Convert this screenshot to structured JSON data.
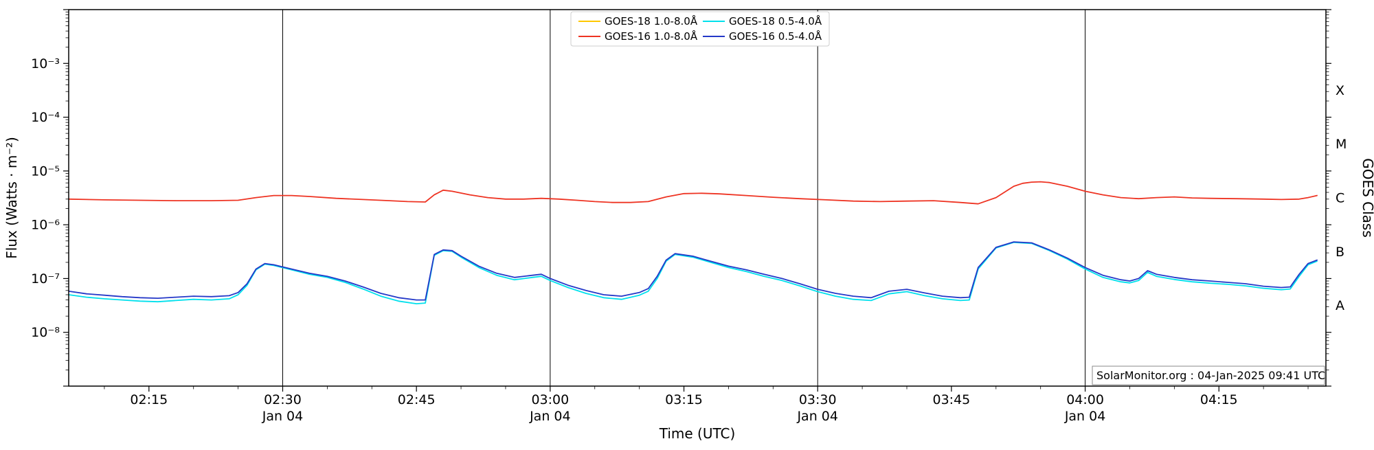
{
  "chart_data": {
    "type": "line",
    "title": "",
    "xlabel": "Time (UTC)",
    "ylabel": "Flux (Watts · m⁻²)",
    "ylabel_right": "GOES Class",
    "annotation": "SolarMonitor.org : 04-Jan-2025 09:41 UTC",
    "x_axis": {
      "unit": "minutes after 00:00 UTC, 04-Jan-2025",
      "range_minutes": [
        126,
        267
      ],
      "minor_tick_step_minutes": 5,
      "ticks": [
        {
          "t": 135,
          "label": "02:15"
        },
        {
          "t": 150,
          "label": "02:30"
        },
        {
          "t": 165,
          "label": "02:45"
        },
        {
          "t": 180,
          "label": "03:00"
        },
        {
          "t": 195,
          "label": "03:15"
        },
        {
          "t": 210,
          "label": "03:30"
        },
        {
          "t": 225,
          "label": "03:45"
        },
        {
          "t": 240,
          "label": "04:00"
        },
        {
          "t": 255,
          "label": "04:15"
        }
      ],
      "date_markers": [
        {
          "t": 150,
          "label": "Jan 04"
        },
        {
          "t": 180,
          "label": "Jan 04"
        },
        {
          "t": 210,
          "label": "Jan 04"
        },
        {
          "t": 240,
          "label": "Jan 04"
        }
      ]
    },
    "y_axis": {
      "scale": "log",
      "range": [
        1e-09,
        0.01
      ],
      "ticks": [
        {
          "v": 0.001,
          "label": "10⁻³"
        },
        {
          "v": 0.0001,
          "label": "10⁻⁴"
        },
        {
          "v": 1e-05,
          "label": "10⁻⁵"
        },
        {
          "v": 1e-06,
          "label": "10⁻⁶"
        },
        {
          "v": 1e-07,
          "label": "10⁻⁷"
        },
        {
          "v": 1e-08,
          "label": "10⁻⁸"
        }
      ]
    },
    "right_axis": {
      "classes": [
        {
          "label": "X",
          "v": 0.000316
        },
        {
          "label": "M",
          "v": 3.16e-05
        },
        {
          "label": "C",
          "v": 3.16e-06
        },
        {
          "label": "B",
          "v": 3.16e-07
        },
        {
          "label": "A",
          "v": 3.16e-08
        }
      ]
    },
    "legend_position": "top-center",
    "grid": "vertical-date-lines-only",
    "series": [
      {
        "name": "GOES-18 1.0-8.0Å",
        "color": "#ffc800",
        "note": "legend entry only; trace hidden beneath GOES-16 1.0-8.0Å",
        "points": []
      },
      {
        "name": "GOES-16 1.0-8.0Å",
        "color": "#ee3322",
        "points": [
          [
            126,
            3e-06
          ],
          [
            130,
            2.9e-06
          ],
          [
            134,
            2.85e-06
          ],
          [
            138,
            2.8e-06
          ],
          [
            142,
            2.8e-06
          ],
          [
            145,
            2.85e-06
          ],
          [
            147,
            3.2e-06
          ],
          [
            149,
            3.5e-06
          ],
          [
            151,
            3.5e-06
          ],
          [
            153,
            3.35e-06
          ],
          [
            156,
            3.1e-06
          ],
          [
            159,
            2.95e-06
          ],
          [
            162,
            2.8e-06
          ],
          [
            164,
            2.7e-06
          ],
          [
            166,
            2.65e-06
          ],
          [
            167,
            3.6e-06
          ],
          [
            168,
            4.4e-06
          ],
          [
            169,
            4.2e-06
          ],
          [
            171,
            3.6e-06
          ],
          [
            173,
            3.2e-06
          ],
          [
            175,
            3e-06
          ],
          [
            177,
            3e-06
          ],
          [
            179,
            3.1e-06
          ],
          [
            181,
            3e-06
          ],
          [
            183,
            2.85e-06
          ],
          [
            185,
            2.7e-06
          ],
          [
            187,
            2.6e-06
          ],
          [
            189,
            2.6e-06
          ],
          [
            191,
            2.7e-06
          ],
          [
            193,
            3.3e-06
          ],
          [
            195,
            3.8e-06
          ],
          [
            197,
            3.85e-06
          ],
          [
            199,
            3.75e-06
          ],
          [
            202,
            3.5e-06
          ],
          [
            205,
            3.25e-06
          ],
          [
            208,
            3.05e-06
          ],
          [
            211,
            2.9e-06
          ],
          [
            214,
            2.75e-06
          ],
          [
            217,
            2.7e-06
          ],
          [
            220,
            2.75e-06
          ],
          [
            223,
            2.8e-06
          ],
          [
            226,
            2.6e-06
          ],
          [
            228,
            2.45e-06
          ],
          [
            230,
            3.2e-06
          ],
          [
            232,
            5.2e-06
          ],
          [
            233,
            5.9e-06
          ],
          [
            234,
            6.2e-06
          ],
          [
            235,
            6.3e-06
          ],
          [
            236,
            6.1e-06
          ],
          [
            238,
            5.2e-06
          ],
          [
            240,
            4.2e-06
          ],
          [
            242,
            3.6e-06
          ],
          [
            244,
            3.2e-06
          ],
          [
            246,
            3.05e-06
          ],
          [
            248,
            3.2e-06
          ],
          [
            250,
            3.3e-06
          ],
          [
            252,
            3.15e-06
          ],
          [
            254,
            3.1e-06
          ],
          [
            257,
            3.05e-06
          ],
          [
            260,
            3e-06
          ],
          [
            262,
            2.95e-06
          ],
          [
            264,
            3e-06
          ],
          [
            265,
            3.2e-06
          ],
          [
            266,
            3.5e-06
          ]
        ]
      },
      {
        "name": "GOES-18 0.5-4.0Å",
        "color": "#00e0ec",
        "points": [
          [
            126,
            5e-08
          ],
          [
            128,
            4.5e-08
          ],
          [
            130,
            4.2e-08
          ],
          [
            132,
            4e-08
          ],
          [
            134,
            3.8e-08
          ],
          [
            136,
            3.7e-08
          ],
          [
            138,
            3.9e-08
          ],
          [
            140,
            4.1e-08
          ],
          [
            142,
            4e-08
          ],
          [
            144,
            4.2e-08
          ],
          [
            145,
            5e-08
          ],
          [
            146,
            7.5e-08
          ],
          [
            147,
            1.45e-07
          ],
          [
            148,
            1.85e-07
          ],
          [
            149,
            1.75e-07
          ],
          [
            151,
            1.45e-07
          ],
          [
            153,
            1.2e-07
          ],
          [
            155,
            1.05e-07
          ],
          [
            157,
            8.5e-08
          ],
          [
            159,
            6.4e-08
          ],
          [
            161,
            4.7e-08
          ],
          [
            163,
            3.8e-08
          ],
          [
            165,
            3.4e-08
          ],
          [
            166,
            3.5e-08
          ],
          [
            167,
            2.7e-07
          ],
          [
            168,
            3.3e-07
          ],
          [
            169,
            3.2e-07
          ],
          [
            170,
            2.5e-07
          ],
          [
            172,
            1.6e-07
          ],
          [
            174,
            1.15e-07
          ],
          [
            176,
            9.5e-08
          ],
          [
            178,
            1.05e-07
          ],
          [
            179,
            1.1e-07
          ],
          [
            180,
            9.2e-08
          ],
          [
            182,
            6.8e-08
          ],
          [
            184,
            5.3e-08
          ],
          [
            186,
            4.4e-08
          ],
          [
            188,
            4.1e-08
          ],
          [
            190,
            4.9e-08
          ],
          [
            191,
            5.8e-08
          ],
          [
            192,
            1e-07
          ],
          [
            193,
            2.1e-07
          ],
          [
            194,
            2.8e-07
          ],
          [
            196,
            2.5e-07
          ],
          [
            198,
            2e-07
          ],
          [
            200,
            1.6e-07
          ],
          [
            202,
            1.35e-07
          ],
          [
            204,
            1.1e-07
          ],
          [
            206,
            9.2e-08
          ],
          [
            208,
            7.3e-08
          ],
          [
            210,
            5.7e-08
          ],
          [
            212,
            4.7e-08
          ],
          [
            214,
            4.1e-08
          ],
          [
            216,
            3.9e-08
          ],
          [
            218,
            5.2e-08
          ],
          [
            220,
            5.7e-08
          ],
          [
            222,
            4.8e-08
          ],
          [
            224,
            4.2e-08
          ],
          [
            226,
            3.9e-08
          ],
          [
            227,
            4e-08
          ],
          [
            228,
            1.5e-07
          ],
          [
            230,
            3.7e-07
          ],
          [
            232,
            4.7e-07
          ],
          [
            234,
            4.5e-07
          ],
          [
            236,
            3.3e-07
          ],
          [
            238,
            2.3e-07
          ],
          [
            240,
            1.5e-07
          ],
          [
            242,
            1.05e-07
          ],
          [
            244,
            8.7e-08
          ],
          [
            245,
            8.3e-08
          ],
          [
            246,
            9.2e-08
          ],
          [
            247,
            1.3e-07
          ],
          [
            248,
            1.1e-07
          ],
          [
            250,
            9.6e-08
          ],
          [
            252,
            8.7e-08
          ],
          [
            254,
            8.2e-08
          ],
          [
            256,
            7.8e-08
          ],
          [
            258,
            7.3e-08
          ],
          [
            260,
            6.6e-08
          ],
          [
            262,
            6.2e-08
          ],
          [
            263,
            6.4e-08
          ],
          [
            264,
            1.1e-07
          ],
          [
            265,
            1.8e-07
          ],
          [
            266,
            2.1e-07
          ]
        ]
      },
      {
        "name": "GOES-16 0.5-4.0Å",
        "color": "#2438c8",
        "points": [
          [
            126,
            5.8e-08
          ],
          [
            128,
            5.2e-08
          ],
          [
            130,
            4.9e-08
          ],
          [
            132,
            4.6e-08
          ],
          [
            134,
            4.4e-08
          ],
          [
            136,
            4.3e-08
          ],
          [
            138,
            4.5e-08
          ],
          [
            140,
            4.7e-08
          ],
          [
            142,
            4.6e-08
          ],
          [
            144,
            4.8e-08
          ],
          [
            145,
            5.5e-08
          ],
          [
            146,
            8e-08
          ],
          [
            147,
            1.5e-07
          ],
          [
            148,
            1.9e-07
          ],
          [
            149,
            1.8e-07
          ],
          [
            151,
            1.5e-07
          ],
          [
            153,
            1.25e-07
          ],
          [
            155,
            1.1e-07
          ],
          [
            157,
            9e-08
          ],
          [
            159,
            7e-08
          ],
          [
            161,
            5.3e-08
          ],
          [
            163,
            4.4e-08
          ],
          [
            165,
            4e-08
          ],
          [
            166,
            4e-08
          ],
          [
            167,
            2.8e-07
          ],
          [
            168,
            3.4e-07
          ],
          [
            169,
            3.3e-07
          ],
          [
            170,
            2.6e-07
          ],
          [
            172,
            1.7e-07
          ],
          [
            174,
            1.25e-07
          ],
          [
            176,
            1.05e-07
          ],
          [
            178,
            1.15e-07
          ],
          [
            179,
            1.2e-07
          ],
          [
            180,
            1e-07
          ],
          [
            182,
            7.5e-08
          ],
          [
            184,
            6e-08
          ],
          [
            186,
            5e-08
          ],
          [
            188,
            4.7e-08
          ],
          [
            190,
            5.5e-08
          ],
          [
            191,
            6.5e-08
          ],
          [
            192,
            1.1e-07
          ],
          [
            193,
            2.2e-07
          ],
          [
            194,
            2.9e-07
          ],
          [
            196,
            2.6e-07
          ],
          [
            198,
            2.1e-07
          ],
          [
            200,
            1.7e-07
          ],
          [
            202,
            1.45e-07
          ],
          [
            204,
            1.2e-07
          ],
          [
            206,
            1e-07
          ],
          [
            208,
            8e-08
          ],
          [
            210,
            6.3e-08
          ],
          [
            212,
            5.3e-08
          ],
          [
            214,
            4.7e-08
          ],
          [
            216,
            4.4e-08
          ],
          [
            218,
            5.8e-08
          ],
          [
            220,
            6.3e-08
          ],
          [
            222,
            5.4e-08
          ],
          [
            224,
            4.7e-08
          ],
          [
            226,
            4.4e-08
          ],
          [
            227,
            4.5e-08
          ],
          [
            228,
            1.6e-07
          ],
          [
            230,
            3.8e-07
          ],
          [
            232,
            4.8e-07
          ],
          [
            234,
            4.6e-07
          ],
          [
            236,
            3.4e-07
          ],
          [
            238,
            2.4e-07
          ],
          [
            240,
            1.6e-07
          ],
          [
            242,
            1.15e-07
          ],
          [
            244,
            9.5e-08
          ],
          [
            245,
            9e-08
          ],
          [
            246,
            1e-07
          ],
          [
            247,
            1.4e-07
          ],
          [
            248,
            1.2e-07
          ],
          [
            250,
            1.05e-07
          ],
          [
            252,
            9.5e-08
          ],
          [
            254,
            9e-08
          ],
          [
            256,
            8.5e-08
          ],
          [
            258,
            8e-08
          ],
          [
            260,
            7.2e-08
          ],
          [
            262,
            6.8e-08
          ],
          [
            263,
            7e-08
          ],
          [
            264,
            1.2e-07
          ],
          [
            265,
            1.9e-07
          ],
          [
            266,
            2.2e-07
          ]
        ]
      }
    ]
  },
  "colors": {
    "frame": "#000000",
    "date_line": "#000000",
    "legend_border": "#cccccc",
    "watermark_border": "#888888",
    "background": "#ffffff"
  }
}
